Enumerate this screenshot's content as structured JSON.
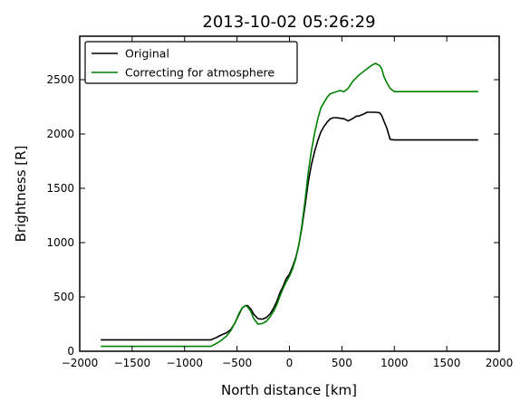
{
  "chart_data": {
    "type": "line",
    "title": "2013-10-02 05:26:29",
    "xlabel": "North distance [km]",
    "ylabel": "Brightness [R]",
    "xlim": [
      -2000,
      2000
    ],
    "ylim": [
      0,
      2900
    ],
    "x_ticks": [
      -2000,
      -1500,
      -1000,
      -500,
      0,
      500,
      1000,
      1500,
      2000
    ],
    "y_ticks": [
      0,
      500,
      1000,
      1500,
      2000,
      2500
    ],
    "x_tick_labels": [
      "−2000",
      "−1500",
      "−1000",
      "−500",
      "0",
      "500",
      "1000",
      "1500",
      "2000"
    ],
    "y_tick_labels": [
      "0",
      "500",
      "1000",
      "1500",
      "2000",
      "2500"
    ],
    "grid": false,
    "legend_position": "top-left",
    "series": [
      {
        "name": "Original",
        "color": "#000000",
        "x": [
          -1800,
          -750,
          -700,
          -650,
          -600,
          -560,
          -520,
          -480,
          -450,
          -420,
          -400,
          -370,
          -340,
          -300,
          -260,
          -220,
          -180,
          -150,
          -120,
          -90,
          -60,
          -30,
          0,
          30,
          60,
          90,
          120,
          150,
          180,
          210,
          240,
          270,
          300,
          330,
          360,
          390,
          420,
          450,
          480,
          520,
          560,
          600,
          640,
          660,
          700,
          740,
          780,
          820,
          860,
          880,
          900,
          930,
          960,
          1000,
          1800
        ],
        "y": [
          105,
          105,
          125,
          150,
          170,
          200,
          260,
          340,
          400,
          420,
          420,
          390,
          340,
          300,
          295,
          310,
          350,
          400,
          460,
          540,
          600,
          670,
          710,
          780,
          860,
          980,
          1150,
          1350,
          1560,
          1720,
          1840,
          1940,
          2020,
          2070,
          2110,
          2140,
          2150,
          2150,
          2145,
          2140,
          2120,
          2140,
          2165,
          2165,
          2180,
          2200,
          2200,
          2200,
          2195,
          2170,
          2120,
          2050,
          1950,
          1945,
          1945
        ]
      },
      {
        "name": "Correcting for atmosphere",
        "color": "#008000",
        "x": [
          -1800,
          -750,
          -700,
          -650,
          -600,
          -560,
          -520,
          -480,
          -450,
          -420,
          -400,
          -370,
          -340,
          -300,
          -260,
          -220,
          -180,
          -150,
          -120,
          -90,
          -60,
          -30,
          0,
          30,
          60,
          90,
          120,
          150,
          180,
          210,
          240,
          270,
          300,
          330,
          360,
          390,
          420,
          450,
          480,
          520,
          560,
          600,
          640,
          660,
          700,
          740,
          780,
          820,
          860,
          880,
          900,
          930,
          960,
          1000,
          1800
        ],
        "y": [
          45,
          45,
          70,
          100,
          140,
          190,
          260,
          350,
          400,
          420,
          410,
          370,
          300,
          250,
          255,
          275,
          325,
          370,
          430,
          510,
          580,
          640,
          690,
          760,
          850,
          980,
          1170,
          1400,
          1650,
          1850,
          2010,
          2140,
          2240,
          2290,
          2340,
          2370,
          2380,
          2390,
          2400,
          2390,
          2420,
          2480,
          2520,
          2540,
          2570,
          2600,
          2630,
          2650,
          2630,
          2600,
          2530,
          2470,
          2420,
          2390,
          2390
        ]
      }
    ]
  }
}
